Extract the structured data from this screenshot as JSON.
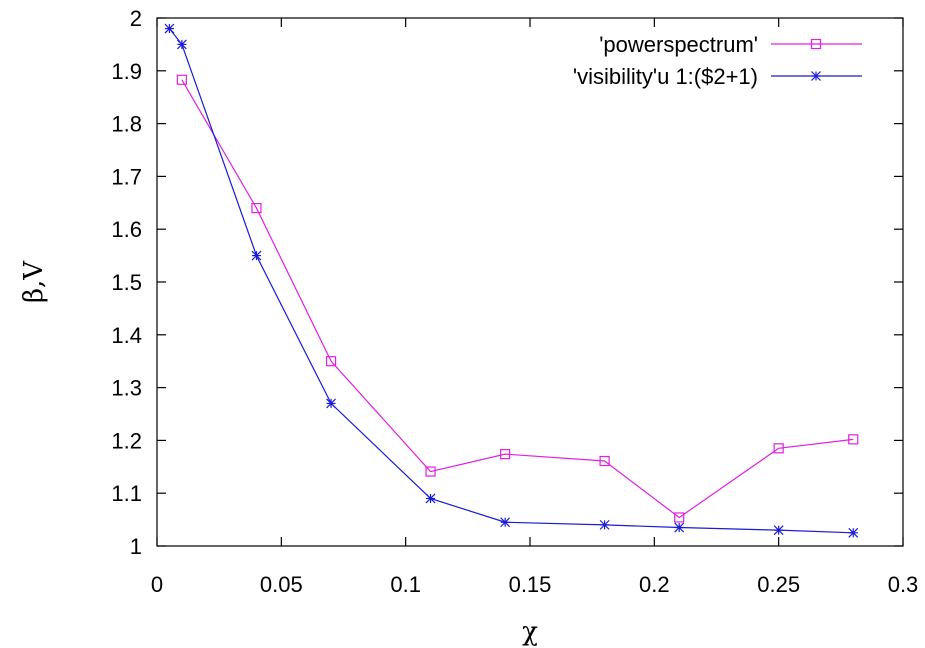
{
  "chart_data": {
    "type": "line",
    "xlabel": "χ",
    "ylabel": "β,V",
    "xlim": [
      0,
      0.3
    ],
    "ylim": [
      1,
      2
    ],
    "xticks": [
      "0",
      "0.05",
      "0.1",
      "0.15",
      "0.2",
      "0.25",
      "0.3"
    ],
    "yticks": [
      "1",
      "1.1",
      "1.2",
      "1.3",
      "1.4",
      "1.5",
      "1.6",
      "1.7",
      "1.8",
      "1.9",
      "2"
    ],
    "legend_position": "top-right",
    "grid": false,
    "series": [
      {
        "name": "'powerspectrum'",
        "color": "#e020e0",
        "marker": "open-square",
        "x": [
          0.01,
          0.04,
          0.07,
          0.11,
          0.14,
          0.18,
          0.21,
          0.25,
          0.28
        ],
        "y": [
          1.883,
          1.64,
          1.35,
          1.141,
          1.174,
          1.161,
          1.054,
          1.185,
          1.202
        ]
      },
      {
        "name": "'visibility'u 1:($2+1)",
        "color": "#1a1ad8",
        "marker": "star",
        "x": [
          0.005,
          0.01,
          0.04,
          0.07,
          0.11,
          0.14,
          0.18,
          0.21,
          0.25,
          0.28
        ],
        "y": [
          1.98,
          1.95,
          1.55,
          1.27,
          1.09,
          1.045,
          1.04,
          1.035,
          1.03,
          1.025
        ]
      }
    ]
  }
}
